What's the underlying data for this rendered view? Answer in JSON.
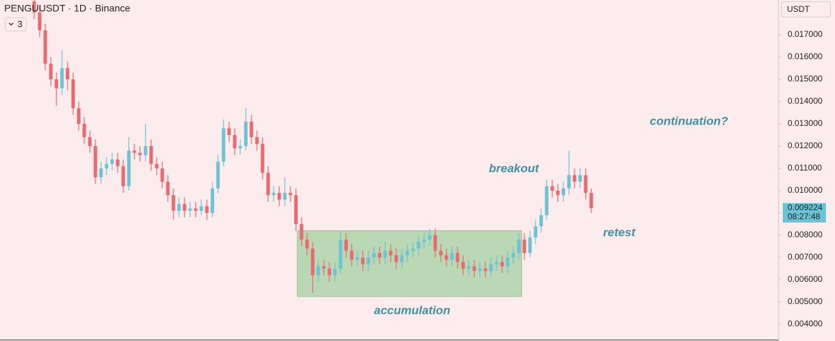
{
  "chart_data": {
    "type": "candlestick",
    "title": "PENGUUSDT · 1D · Binance",
    "indicators_button": "3",
    "currency_button": "USDT",
    "up_color": "#6cc3d3",
    "down_color": "#e8696e",
    "ylim": [
      0.00325,
      0.01856
    ],
    "yticks": [
      {
        "value": 0.004,
        "label": "0.004000"
      },
      {
        "value": 0.005,
        "label": "0.005000"
      },
      {
        "value": 0.006,
        "label": "0.006000"
      },
      {
        "value": 0.007,
        "label": "0.007000"
      },
      {
        "value": 0.008,
        "label": "0.008000"
      },
      {
        "value": 0.009,
        "label": "0.009000"
      },
      {
        "value": 0.01,
        "label": "0.010000"
      },
      {
        "value": 0.011,
        "label": "0.011000"
      },
      {
        "value": 0.012,
        "label": "0.012000"
      },
      {
        "value": 0.013,
        "label": "0.013000"
      },
      {
        "value": 0.014,
        "label": "0.014000"
      },
      {
        "value": 0.015,
        "label": "0.015000"
      },
      {
        "value": 0.016,
        "label": "0.016000"
      },
      {
        "value": 0.017,
        "label": "0.017000"
      }
    ],
    "last_price": {
      "value": 0.009224,
      "label": "0.009224"
    },
    "countdown": "08:27:48",
    "zone": {
      "top": 0.0082,
      "bottom": 0.00525,
      "color": "#b3d6ad"
    },
    "annotations": [
      "continuation?",
      "breakout",
      "retest",
      "accumulation"
    ],
    "ohlc": [
      [
        0.0185,
        0.0188,
        0.0177,
        0.018
      ],
      [
        0.018,
        0.0183,
        0.0169,
        0.0172
      ],
      [
        0.0172,
        0.0175,
        0.0154,
        0.0157
      ],
      [
        0.0157,
        0.016,
        0.0147,
        0.015
      ],
      [
        0.015,
        0.0153,
        0.0138,
        0.0146
      ],
      [
        0.0146,
        0.0163,
        0.0143,
        0.0155
      ],
      [
        0.0155,
        0.0158,
        0.0145,
        0.015
      ],
      [
        0.015,
        0.0153,
        0.0134,
        0.0137
      ],
      [
        0.0137,
        0.014,
        0.0127,
        0.013
      ],
      [
        0.013,
        0.0133,
        0.0121,
        0.0124
      ],
      [
        0.0124,
        0.0127,
        0.0117,
        0.012
      ],
      [
        0.012,
        0.0123,
        0.0103,
        0.0106
      ],
      [
        0.0106,
        0.0113,
        0.0103,
        0.011
      ],
      [
        0.011,
        0.0115,
        0.0107,
        0.0112
      ],
      [
        0.0112,
        0.0117,
        0.0109,
        0.0114
      ],
      [
        0.0114,
        0.0117,
        0.0108,
        0.0111
      ],
      [
        0.0111,
        0.0114,
        0.0099,
        0.0102
      ],
      [
        0.0102,
        0.0124,
        0.01,
        0.0118
      ],
      [
        0.0118,
        0.0121,
        0.0114,
        0.0117
      ],
      [
        0.0117,
        0.012,
        0.0113,
        0.0116
      ],
      [
        0.0116,
        0.013,
        0.0113,
        0.012
      ],
      [
        0.012,
        0.0123,
        0.0109,
        0.0112
      ],
      [
        0.0112,
        0.0115,
        0.0107,
        0.011
      ],
      [
        0.011,
        0.0113,
        0.0101,
        0.0104
      ],
      [
        0.0104,
        0.0107,
        0.0095,
        0.0098
      ],
      [
        0.0098,
        0.0101,
        0.0087,
        0.0091
      ],
      [
        0.0091,
        0.0097,
        0.0088,
        0.0094
      ],
      [
        0.0094,
        0.0097,
        0.0088,
        0.0091
      ],
      [
        0.0091,
        0.0095,
        0.0088,
        0.0092
      ],
      [
        0.0092,
        0.0095,
        0.0088,
        0.0091
      ],
      [
        0.0091,
        0.0096,
        0.0089,
        0.0093
      ],
      [
        0.0093,
        0.0096,
        0.0087,
        0.009
      ],
      [
        0.009,
        0.0104,
        0.0088,
        0.0101
      ],
      [
        0.0101,
        0.0116,
        0.0099,
        0.0113
      ],
      [
        0.0113,
        0.0132,
        0.0111,
        0.0128
      ],
      [
        0.0128,
        0.0131,
        0.0122,
        0.0125
      ],
      [
        0.0125,
        0.0128,
        0.0116,
        0.0119
      ],
      [
        0.0119,
        0.0123,
        0.0116,
        0.012
      ],
      [
        0.012,
        0.0137,
        0.0118,
        0.0131
      ],
      [
        0.0131,
        0.0134,
        0.0121,
        0.0124
      ],
      [
        0.0124,
        0.0127,
        0.0118,
        0.0121
      ],
      [
        0.0121,
        0.0124,
        0.0105,
        0.0108
      ],
      [
        0.0108,
        0.0111,
        0.0095,
        0.0098
      ],
      [
        0.0098,
        0.0102,
        0.0095,
        0.0099
      ],
      [
        0.0099,
        0.0102,
        0.0093,
        0.0096
      ],
      [
        0.0096,
        0.0106,
        0.0093,
        0.0099
      ],
      [
        0.0099,
        0.0102,
        0.0095,
        0.0098
      ],
      [
        0.0098,
        0.0101,
        0.0082,
        0.0085
      ],
      [
        0.0085,
        0.0088,
        0.0075,
        0.0078
      ],
      [
        0.0078,
        0.0081,
        0.0071,
        0.0074
      ],
      [
        0.0074,
        0.0077,
        0.0054,
        0.0062
      ],
      [
        0.0062,
        0.0069,
        0.0059,
        0.0066
      ],
      [
        0.0066,
        0.0069,
        0.0062,
        0.0065
      ],
      [
        0.0065,
        0.0068,
        0.0059,
        0.0062
      ],
      [
        0.0062,
        0.0068,
        0.0059,
        0.0065
      ],
      [
        0.0065,
        0.0082,
        0.0063,
        0.0078
      ],
      [
        0.0078,
        0.0081,
        0.007,
        0.0073
      ],
      [
        0.0073,
        0.0076,
        0.0066,
        0.0069
      ],
      [
        0.0069,
        0.0073,
        0.0066,
        0.007
      ],
      [
        0.007,
        0.0073,
        0.0064,
        0.0067
      ],
      [
        0.0067,
        0.0073,
        0.0064,
        0.007
      ],
      [
        0.007,
        0.0075,
        0.0067,
        0.0072
      ],
      [
        0.0072,
        0.0075,
        0.0067,
        0.007
      ],
      [
        0.007,
        0.0077,
        0.0067,
        0.0073
      ],
      [
        0.0073,
        0.0076,
        0.0068,
        0.0071
      ],
      [
        0.0071,
        0.0074,
        0.0065,
        0.0068
      ],
      [
        0.0068,
        0.0074,
        0.0065,
        0.0071
      ],
      [
        0.0071,
        0.0076,
        0.0068,
        0.0073
      ],
      [
        0.0073,
        0.0077,
        0.007,
        0.0074
      ],
      [
        0.0074,
        0.008,
        0.0071,
        0.0077
      ],
      [
        0.0077,
        0.0081,
        0.0074,
        0.0078
      ],
      [
        0.0078,
        0.0083,
        0.0075,
        0.008
      ],
      [
        0.008,
        0.0083,
        0.007,
        0.0073
      ],
      [
        0.0073,
        0.0076,
        0.0068,
        0.0071
      ],
      [
        0.0071,
        0.0074,
        0.0066,
        0.0069
      ],
      [
        0.0069,
        0.0075,
        0.0066,
        0.0072
      ],
      [
        0.0072,
        0.0075,
        0.0065,
        0.0068
      ],
      [
        0.0068,
        0.0071,
        0.0062,
        0.0065
      ],
      [
        0.0065,
        0.0069,
        0.0062,
        0.0066
      ],
      [
        0.0066,
        0.0069,
        0.0061,
        0.0064
      ],
      [
        0.0064,
        0.0068,
        0.0061,
        0.0065
      ],
      [
        0.0065,
        0.0068,
        0.0061,
        0.0064
      ],
      [
        0.0064,
        0.007,
        0.0061,
        0.0067
      ],
      [
        0.0067,
        0.0071,
        0.0064,
        0.0068
      ],
      [
        0.0068,
        0.0071,
        0.0063,
        0.0066
      ],
      [
        0.0066,
        0.0073,
        0.0063,
        0.007
      ],
      [
        0.007,
        0.0075,
        0.0067,
        0.0072
      ],
      [
        0.0072,
        0.0081,
        0.0069,
        0.0078
      ],
      [
        0.0078,
        0.0081,
        0.0069,
        0.0072
      ],
      [
        0.0072,
        0.0082,
        0.007,
        0.0079
      ],
      [
        0.0079,
        0.0087,
        0.0076,
        0.0084
      ],
      [
        0.0084,
        0.0092,
        0.0081,
        0.0089
      ],
      [
        0.0089,
        0.0105,
        0.0087,
        0.0102
      ],
      [
        0.0102,
        0.0105,
        0.0097,
        0.01
      ],
      [
        0.01,
        0.0103,
        0.0095,
        0.0098
      ],
      [
        0.0098,
        0.0104,
        0.0095,
        0.0101
      ],
      [
        0.0101,
        0.0118,
        0.0098,
        0.0107
      ],
      [
        0.0107,
        0.011,
        0.0101,
        0.0104
      ],
      [
        0.0104,
        0.011,
        0.0101,
        0.0107
      ],
      [
        0.0107,
        0.011,
        0.0096,
        0.0099
      ],
      [
        0.0099,
        0.0101,
        0.009,
        0.009224
      ]
    ]
  }
}
